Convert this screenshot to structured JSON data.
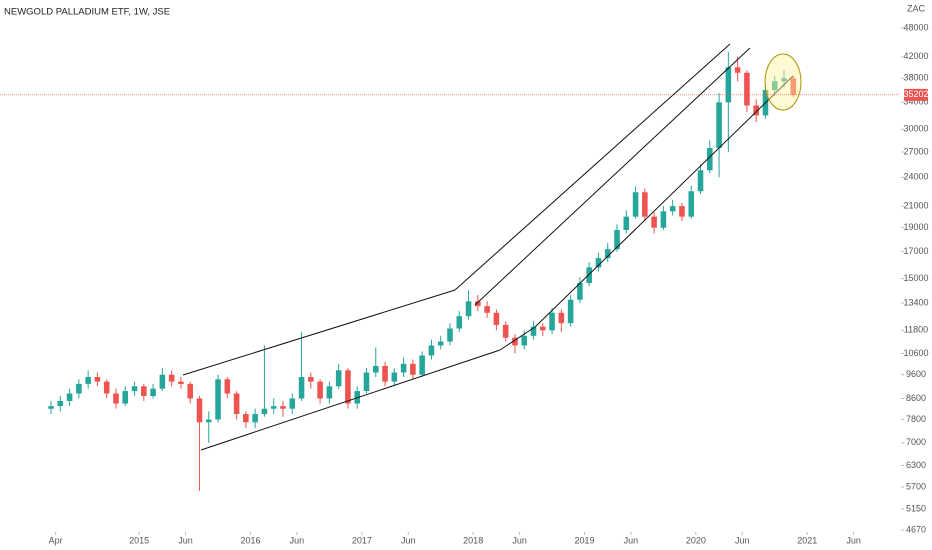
{
  "chart_data": {
    "type": "candlestick",
    "title": "NEWGOLD PALLADIUM ETF, 1W, JSE",
    "currency": "ZAC",
    "log_scale": true,
    "grid": false,
    "up_color": "#26a69a",
    "down_color": "#ef5350",
    "ylim": [
      4627,
      54670
    ],
    "yticks": [
      4670,
      5150,
      5700,
      6300,
      7000,
      7800,
      8600,
      9600,
      10600,
      11800,
      13400,
      15000,
      17000,
      19000,
      21000,
      24000,
      27000,
      30000,
      34000,
      38000,
      42000,
      48000
    ],
    "xlim": [
      "2013-10",
      "2021-11"
    ],
    "xticks": [
      {
        "value": "2014-04",
        "label": "Apr"
      },
      {
        "value": "2015-01",
        "label": "2015"
      },
      {
        "value": "2015-06",
        "label": "Jun"
      },
      {
        "value": "2016-01",
        "label": "2016"
      },
      {
        "value": "2016-06",
        "label": "Jun"
      },
      {
        "value": "2017-01",
        "label": "2017"
      },
      {
        "value": "2017-06",
        "label": "Jun"
      },
      {
        "value": "2018-01",
        "label": "2018"
      },
      {
        "value": "2018-06",
        "label": "Jun"
      },
      {
        "value": "2019-01",
        "label": "2019"
      },
      {
        "value": "2019-06",
        "label": "Jun"
      },
      {
        "value": "2020-01",
        "label": "2020"
      },
      {
        "value": "2020-06",
        "label": "Jun"
      },
      {
        "value": "2021-01",
        "label": "2021"
      },
      {
        "value": "2021-06",
        "label": "Jun"
      }
    ],
    "x": [
      "2014-03",
      "2014-04",
      "2014-05",
      "2014-06",
      "2014-07",
      "2014-08",
      "2014-09",
      "2014-10",
      "2014-11",
      "2014-12",
      "2015-01",
      "2015-02",
      "2015-03",
      "2015-04",
      "2015-05",
      "2015-06",
      "2015-07",
      "2015-08",
      "2015-09",
      "2015-10",
      "2015-11",
      "2015-12",
      "2016-01",
      "2016-02",
      "2016-03",
      "2016-04",
      "2016-05",
      "2016-06",
      "2016-07",
      "2016-08",
      "2016-09",
      "2016-10",
      "2016-11",
      "2016-12",
      "2017-01",
      "2017-02",
      "2017-03",
      "2017-04",
      "2017-05",
      "2017-06",
      "2017-07",
      "2017-08",
      "2017-09",
      "2017-10",
      "2017-11",
      "2017-12",
      "2018-01",
      "2018-02",
      "2018-03",
      "2018-04",
      "2018-05",
      "2018-06",
      "2018-07",
      "2018-08",
      "2018-09",
      "2018-10",
      "2018-11",
      "2018-12",
      "2019-01",
      "2019-02",
      "2019-03",
      "2019-04",
      "2019-05",
      "2019-06",
      "2019-07",
      "2019-08",
      "2019-09",
      "2019-10",
      "2019-11",
      "2019-12",
      "2020-01",
      "2020-02",
      "2020-03",
      "2020-04",
      "2020-05",
      "2020-06",
      "2020-07",
      "2020-08",
      "2020-09",
      "2020-10",
      "2020-11"
    ],
    "open": [
      8200,
      8300,
      8500,
      8800,
      9200,
      9500,
      9300,
      8800,
      8400,
      8900,
      9100,
      8700,
      9000,
      9600,
      9300,
      9200,
      8600,
      7700,
      7800,
      9400,
      8800,
      8000,
      7700,
      8000,
      8200,
      8300,
      8200,
      8600,
      9500,
      9300,
      8600,
      9100,
      9800,
      8400,
      8900,
      9700,
      10000,
      9300,
      9700,
      10100,
      9600,
      10500,
      11000,
      11200,
      11900,
      12600,
      13500,
      13200,
      12800,
      12100,
      11400,
      11000,
      11500,
      12000,
      11800,
      12800,
      12200,
      13600,
      14700,
      15800,
      16500,
      17200,
      18800,
      20000,
      22400,
      20000,
      19000,
      20500,
      21000,
      20000,
      22500,
      24800,
      27500,
      34000,
      40000,
      39000,
      33500,
      32000,
      36000,
      37500,
      38000
    ],
    "high": [
      8500,
      8700,
      9000,
      9400,
      9800,
      9700,
      9400,
      9000,
      9100,
      9300,
      9200,
      9200,
      9900,
      9800,
      9500,
      9300,
      8700,
      8100,
      9600,
      9500,
      8900,
      8100,
      8200,
      11000,
      8600,
      8500,
      8800,
      11700,
      9700,
      9400,
      9300,
      10100,
      9900,
      9100,
      9900,
      10900,
      10200,
      9900,
      10400,
      10300,
      10700,
      11300,
      11500,
      12200,
      12900,
      14200,
      13900,
      13500,
      13000,
      12300,
      11600,
      11800,
      12300,
      12200,
      13100,
      13000,
      13900,
      15100,
      16200,
      16900,
      17700,
      19300,
      20600,
      23000,
      22800,
      20400,
      21000,
      21600,
      21300,
      23100,
      25500,
      28500,
      35500,
      43000,
      42000,
      39500,
      34500,
      37000,
      38500,
      39500,
      38500
    ],
    "low": [
      8000,
      8100,
      8300,
      8600,
      9000,
      9100,
      8600,
      8200,
      8300,
      8700,
      8500,
      8600,
      8900,
      9100,
      9000,
      8400,
      5600,
      7000,
      7700,
      8600,
      7800,
      7500,
      7500,
      7900,
      8000,
      7900,
      8000,
      8500,
      9000,
      8400,
      8400,
      9000,
      8200,
      8200,
      8800,
      9500,
      9100,
      9100,
      9500,
      9400,
      9500,
      10300,
      10800,
      11000,
      11700,
      12400,
      12900,
      12500,
      11800,
      11200,
      10600,
      10800,
      11300,
      11500,
      11600,
      11700,
      12000,
      13400,
      14500,
      15500,
      16200,
      17000,
      18500,
      19800,
      19600,
      18500,
      18800,
      20100,
      19600,
      19800,
      22200,
      24500,
      24000,
      27000,
      37500,
      32500,
      31000,
      31500,
      35000,
      36500,
      34800
    ],
    "close": [
      8300,
      8500,
      8800,
      9200,
      9500,
      9300,
      8800,
      8400,
      8900,
      9100,
      8700,
      9000,
      9600,
      9300,
      9200,
      8600,
      7700,
      7800,
      9400,
      8800,
      8000,
      7700,
      8000,
      8200,
      8300,
      8200,
      8600,
      9500,
      9300,
      8600,
      9100,
      9800,
      8400,
      8900,
      9700,
      10000,
      9300,
      9700,
      10100,
      9600,
      10500,
      11000,
      11200,
      11900,
      12600,
      13500,
      13200,
      12800,
      12100,
      11400,
      11000,
      11500,
      12000,
      11800,
      12800,
      12200,
      13600,
      14700,
      15800,
      16500,
      17200,
      18800,
      20000,
      22400,
      20000,
      19000,
      20500,
      21000,
      20000,
      22500,
      24800,
      27500,
      34000,
      40000,
      39000,
      33500,
      32000,
      36000,
      37500,
      38000,
      35202
    ]
  }
}
